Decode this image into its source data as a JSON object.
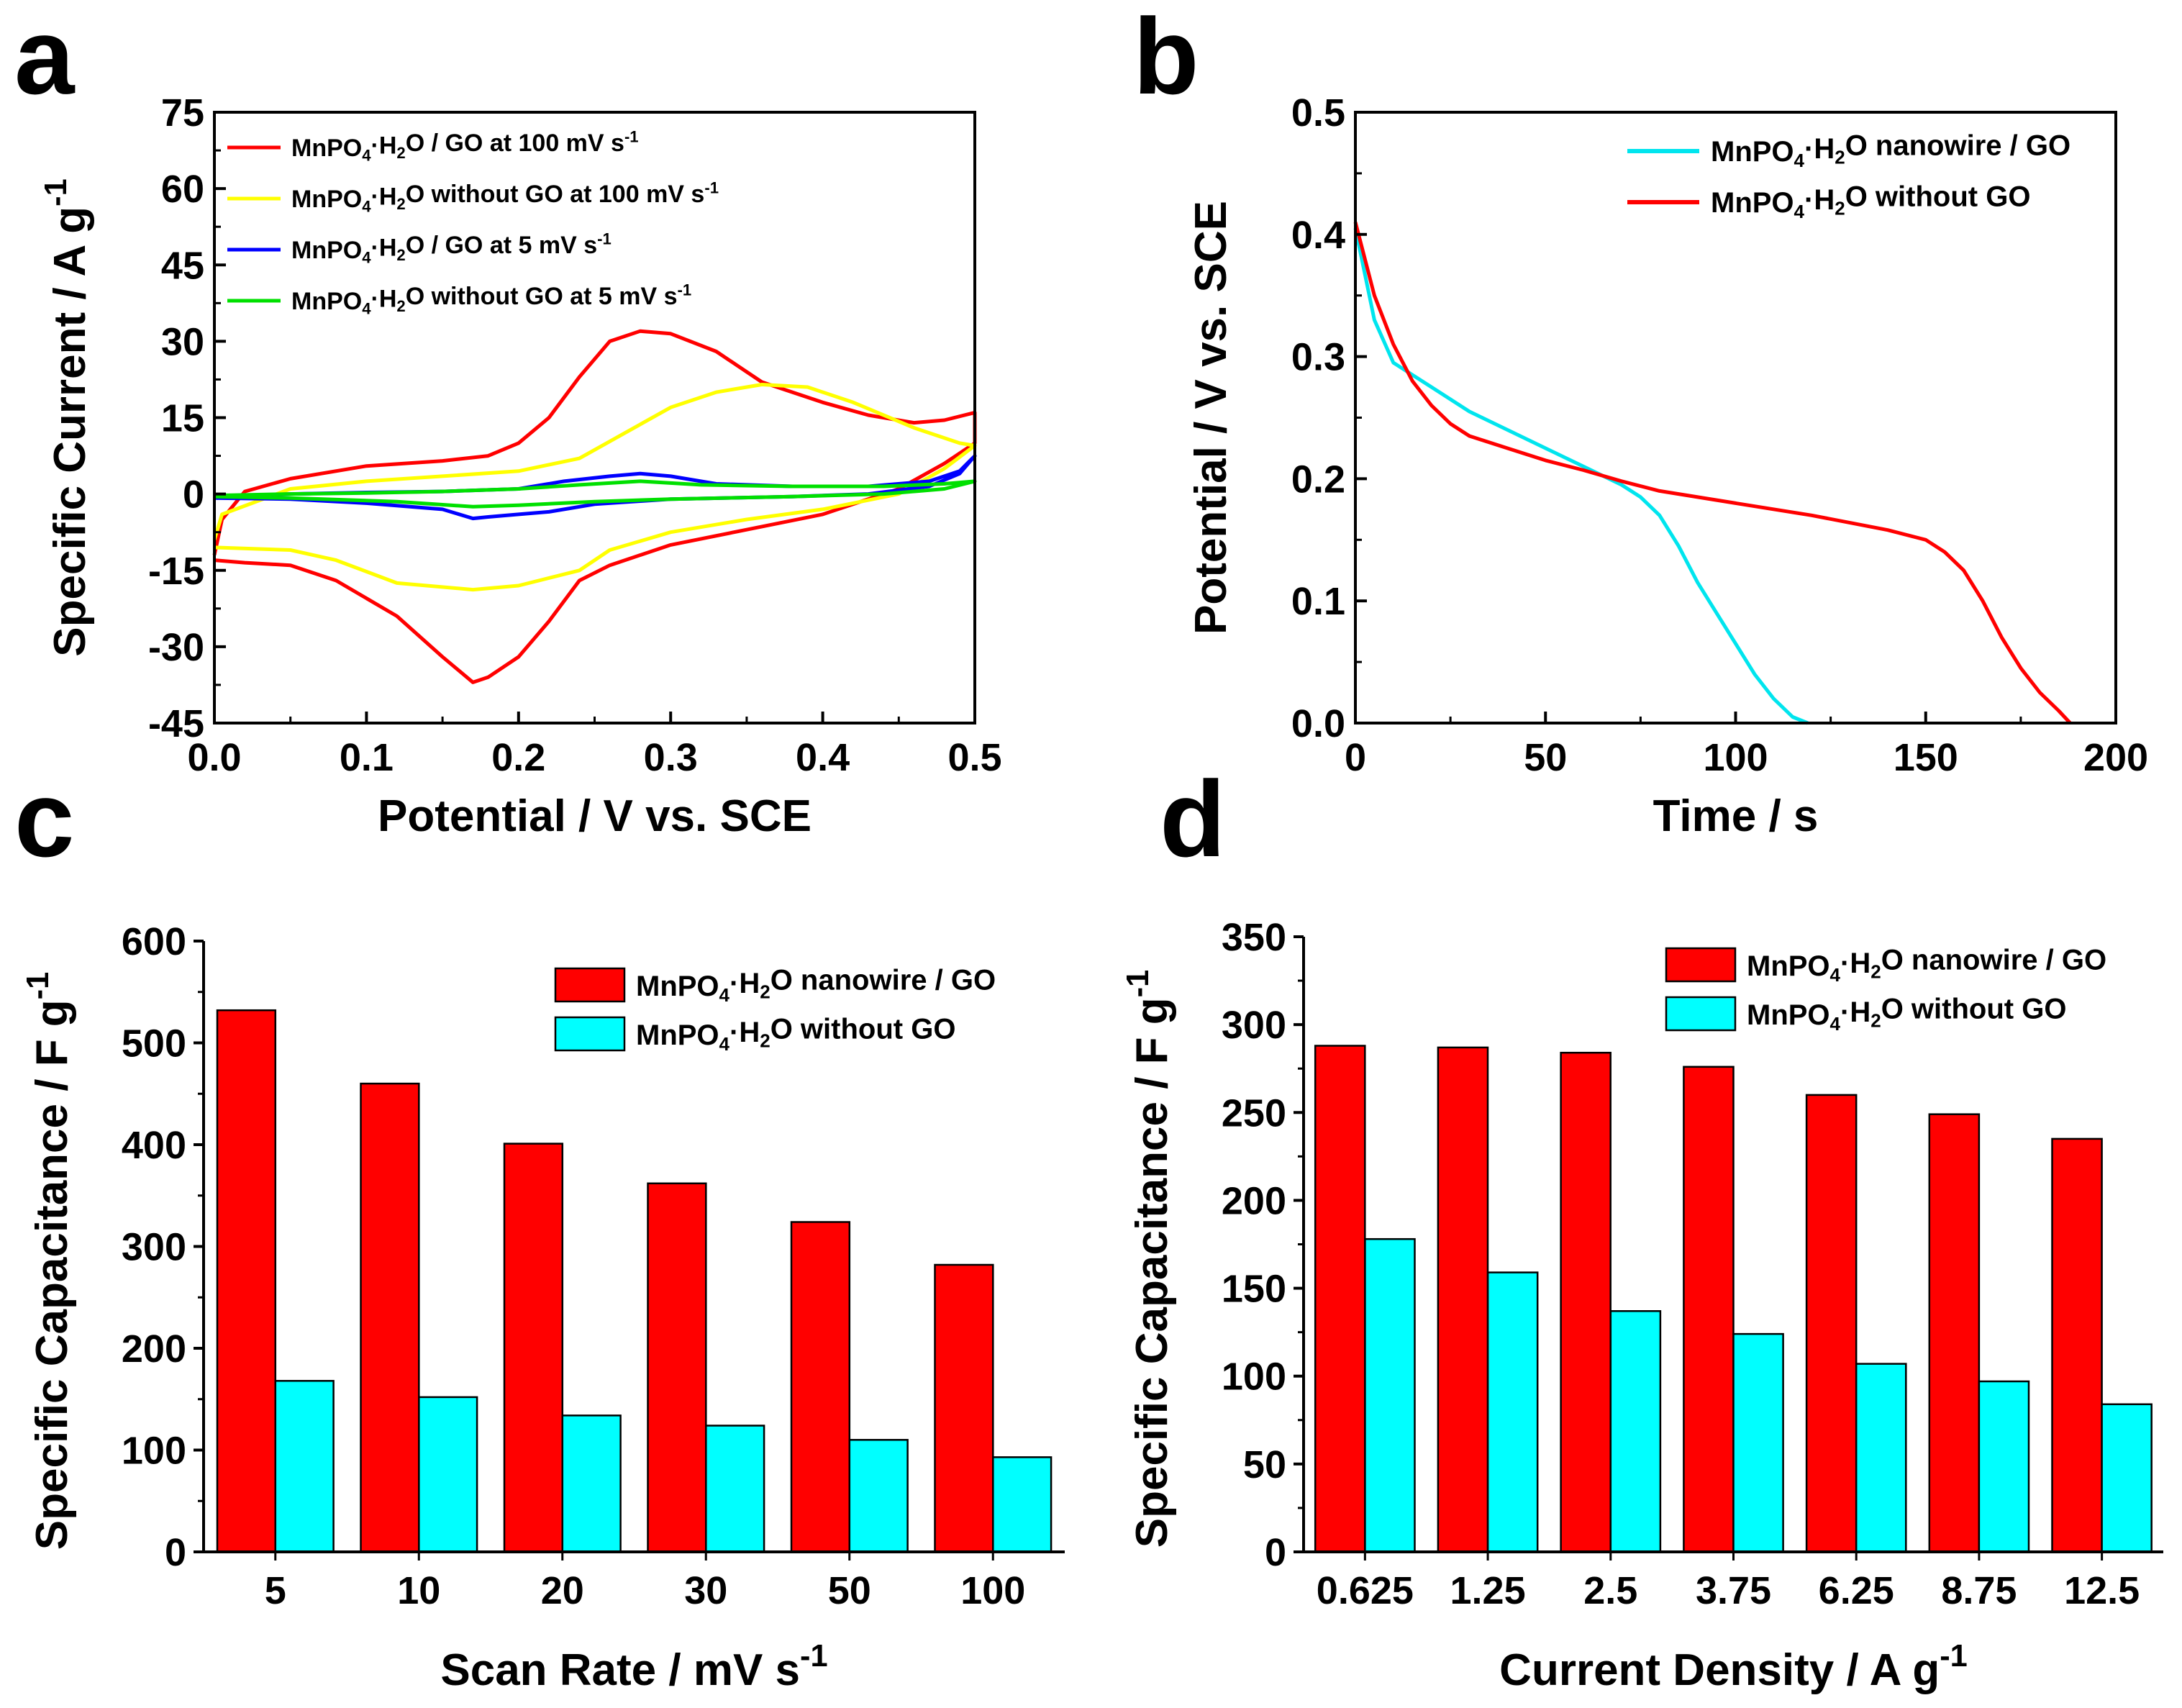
{
  "chart_data": [
    {
      "id": "a",
      "type": "line",
      "panel_label": "a",
      "xlabel": "Potential / V vs. SCE",
      "ylabel": "Specific Current / A g",
      "ylabel_sup": "-1",
      "xlim": [
        0,
        0.5
      ],
      "ylim": [
        -45,
        75
      ],
      "xticks": [
        "0.0",
        "0.1",
        "0.2",
        "0.3",
        "0.4",
        "0.5"
      ],
      "yticks": [
        "75",
        "60",
        "45",
        "30",
        "15",
        "0",
        "-15",
        "-30",
        "-45"
      ],
      "legend_position": "top-left",
      "series": [
        {
          "name": "MnPO4·H2O / GO at 100 mV s-1",
          "label_parts": [
            "MnPO",
            "4",
            "·H",
            "2",
            "O / GO at 100 mV s",
            "-1"
          ],
          "color": "#ff0000",
          "points": [
            [
              0.0,
              -12
            ],
            [
              0.005,
              -5
            ],
            [
              0.02,
              0.5
            ],
            [
              0.05,
              3
            ],
            [
              0.1,
              5.5
            ],
            [
              0.15,
              6.5
            ],
            [
              0.18,
              7.5
            ],
            [
              0.2,
              10
            ],
            [
              0.22,
              15
            ],
            [
              0.24,
              23
            ],
            [
              0.26,
              30
            ],
            [
              0.28,
              32
            ],
            [
              0.3,
              31.5
            ],
            [
              0.33,
              28
            ],
            [
              0.36,
              22
            ],
            [
              0.4,
              18
            ],
            [
              0.43,
              15.5
            ],
            [
              0.46,
              14
            ],
            [
              0.48,
              14.5
            ],
            [
              0.5,
              16
            ],
            [
              0.5,
              10
            ],
            [
              0.48,
              6
            ],
            [
              0.45,
              1
            ],
            [
              0.4,
              -4
            ],
            [
              0.35,
              -7
            ],
            [
              0.3,
              -10
            ],
            [
              0.26,
              -14
            ],
            [
              0.24,
              -17
            ],
            [
              0.22,
              -25
            ],
            [
              0.2,
              -32
            ],
            [
              0.18,
              -36
            ],
            [
              0.17,
              -37
            ],
            [
              0.15,
              -32
            ],
            [
              0.12,
              -24
            ],
            [
              0.08,
              -17
            ],
            [
              0.05,
              -14
            ],
            [
              0.02,
              -13.5
            ],
            [
              0.0,
              -13
            ]
          ]
        },
        {
          "name": "MnPO4·H2O without GO at 100 mV s-1",
          "label_parts": [
            "MnPO",
            "4",
            "·H",
            "2",
            "O without GO at 100 mV s",
            "-1"
          ],
          "color": "#ffff00",
          "points": [
            [
              0.0,
              -9
            ],
            [
              0.005,
              -4
            ],
            [
              0.05,
              1
            ],
            [
              0.1,
              2.5
            ],
            [
              0.15,
              3.5
            ],
            [
              0.2,
              4.5
            ],
            [
              0.24,
              7
            ],
            [
              0.27,
              12
            ],
            [
              0.3,
              17
            ],
            [
              0.33,
              20
            ],
            [
              0.36,
              21.5
            ],
            [
              0.39,
              21
            ],
            [
              0.42,
              18
            ],
            [
              0.46,
              13
            ],
            [
              0.49,
              10
            ],
            [
              0.5,
              9.5
            ],
            [
              0.48,
              5
            ],
            [
              0.45,
              0
            ],
            [
              0.4,
              -3
            ],
            [
              0.35,
              -5
            ],
            [
              0.3,
              -7.5
            ],
            [
              0.26,
              -11
            ],
            [
              0.24,
              -15
            ],
            [
              0.2,
              -18
            ],
            [
              0.17,
              -18.8
            ],
            [
              0.12,
              -17.5
            ],
            [
              0.08,
              -13
            ],
            [
              0.05,
              -11
            ],
            [
              0.0,
              -10.5
            ]
          ]
        },
        {
          "name": "MnPO4·H2O / GO at 5 mV s-1",
          "label_parts": [
            "MnPO",
            "4",
            "·H",
            "2",
            "O / GO at 5 mV s",
            "-1"
          ],
          "color": "#0000ff",
          "points": [
            [
              0.0,
              -0.5
            ],
            [
              0.05,
              0
            ],
            [
              0.1,
              0.3
            ],
            [
              0.15,
              0.5
            ],
            [
              0.2,
              1
            ],
            [
              0.23,
              2.5
            ],
            [
              0.26,
              3.5
            ],
            [
              0.28,
              4
            ],
            [
              0.3,
              3.5
            ],
            [
              0.33,
              2
            ],
            [
              0.38,
              1.5
            ],
            [
              0.43,
              1.5
            ],
            [
              0.47,
              2.5
            ],
            [
              0.49,
              4.5
            ],
            [
              0.5,
              7.5
            ],
            [
              0.49,
              4
            ],
            [
              0.47,
              1.5
            ],
            [
              0.43,
              0
            ],
            [
              0.38,
              -0.5
            ],
            [
              0.3,
              -1
            ],
            [
              0.25,
              -2
            ],
            [
              0.22,
              -3.5
            ],
            [
              0.2,
              -4
            ],
            [
              0.18,
              -4.5
            ],
            [
              0.17,
              -4.8
            ],
            [
              0.15,
              -3
            ],
            [
              0.1,
              -1.8
            ],
            [
              0.05,
              -1
            ],
            [
              0.0,
              -0.8
            ]
          ]
        },
        {
          "name": "MnPO4·H2O without GO at 5 mV s-1",
          "label_parts": [
            "MnPO",
            "4",
            "·H",
            "2",
            "O without GO at 5 mV s",
            "-1"
          ],
          "color": "#00e000",
          "points": [
            [
              0.0,
              -0.3
            ],
            [
              0.05,
              0
            ],
            [
              0.1,
              0.2
            ],
            [
              0.15,
              0.5
            ],
            [
              0.2,
              1
            ],
            [
              0.24,
              1.8
            ],
            [
              0.28,
              2.5
            ],
            [
              0.32,
              1.8
            ],
            [
              0.38,
              1.5
            ],
            [
              0.44,
              1.5
            ],
            [
              0.48,
              2
            ],
            [
              0.5,
              2.5
            ],
            [
              0.48,
              1
            ],
            [
              0.44,
              0
            ],
            [
              0.38,
              -0.5
            ],
            [
              0.3,
              -1
            ],
            [
              0.25,
              -1.5
            ],
            [
              0.2,
              -2.2
            ],
            [
              0.17,
              -2.5
            ],
            [
              0.12,
              -1.5
            ],
            [
              0.05,
              -0.8
            ],
            [
              0.0,
              -0.5
            ]
          ]
        }
      ]
    },
    {
      "id": "b",
      "type": "line",
      "panel_label": "b",
      "xlabel": "Time / s",
      "ylabel": "Potential / V vs. SCE",
      "xlim": [
        0,
        200
      ],
      "ylim": [
        0,
        0.5
      ],
      "xticks": [
        "0",
        "50",
        "100",
        "150",
        "200"
      ],
      "yticks": [
        "0.5",
        "0.4",
        "0.3",
        "0.2",
        "0.1",
        "0.0"
      ],
      "legend_position": "top-right",
      "series": [
        {
          "name": "MnPO4·H2O nanowire / GO",
          "label_parts": [
            "MnPO",
            "4",
            "·H",
            "2",
            "O nanowire / GO",
            ""
          ],
          "color": "#00e5ee",
          "points": [
            [
              0,
              0.405
            ],
            [
              5,
              0.33
            ],
            [
              10,
              0.295
            ],
            [
              15,
              0.285
            ],
            [
              20,
              0.275
            ],
            [
              30,
              0.255
            ],
            [
              40,
              0.24
            ],
            [
              50,
              0.225
            ],
            [
              60,
              0.21
            ],
            [
              70,
              0.195
            ],
            [
              75,
              0.185
            ],
            [
              80,
              0.17
            ],
            [
              85,
              0.145
            ],
            [
              90,
              0.115
            ],
            [
              95,
              0.09
            ],
            [
              100,
              0.065
            ],
            [
              105,
              0.04
            ],
            [
              110,
              0.02
            ],
            [
              115,
              0.005
            ],
            [
              119,
              0.0
            ]
          ]
        },
        {
          "name": "MnPO4·H2O without GO",
          "label_parts": [
            "MnPO",
            "4",
            "·H",
            "2",
            "O without GO",
            ""
          ],
          "color": "#ff0000",
          "points": [
            [
              0,
              0.41
            ],
            [
              5,
              0.35
            ],
            [
              10,
              0.31
            ],
            [
              15,
              0.28
            ],
            [
              20,
              0.26
            ],
            [
              25,
              0.245
            ],
            [
              30,
              0.235
            ],
            [
              40,
              0.225
            ],
            [
              50,
              0.215
            ],
            [
              60,
              0.207
            ],
            [
              70,
              0.198
            ],
            [
              80,
              0.19
            ],
            [
              100,
              0.18
            ],
            [
              120,
              0.17
            ],
            [
              140,
              0.158
            ],
            [
              150,
              0.15
            ],
            [
              155,
              0.14
            ],
            [
              160,
              0.125
            ],
            [
              165,
              0.1
            ],
            [
              170,
              0.07
            ],
            [
              175,
              0.045
            ],
            [
              180,
              0.025
            ],
            [
              185,
              0.01
            ],
            [
              188,
              0.0
            ]
          ]
        }
      ]
    },
    {
      "id": "c",
      "type": "bar",
      "panel_label": "c",
      "xlabel": "Scan Rate / mV s",
      "xlabel_sup": "-1",
      "ylabel": "Specific Capacitance / F g",
      "ylabel_sup": "-1",
      "ylim": [
        0,
        600
      ],
      "yticks": [
        "600",
        "500",
        "400",
        "300",
        "200",
        "100",
        "0"
      ],
      "categories": [
        "5",
        "10",
        "20",
        "30",
        "50",
        "100"
      ],
      "legend_position": "top-right",
      "series": [
        {
          "name": "MnPO4·H2O nanowire / GO",
          "label_parts": [
            "MnPO",
            "4",
            "·H",
            "2",
            "O nanowire / GO",
            ""
          ],
          "color": "#ff0000",
          "values": [
            532,
            460,
            401,
            362,
            324,
            282
          ]
        },
        {
          "name": "MnPO4·H2O without GO",
          "label_parts": [
            "MnPO",
            "4",
            "·H",
            "2",
            "O without GO",
            ""
          ],
          "color": "#00ffff",
          "values": [
            168,
            152,
            134,
            124,
            110,
            93
          ]
        }
      ]
    },
    {
      "id": "d",
      "type": "bar",
      "panel_label": "d",
      "xlabel": "Current Density / A g",
      "xlabel_sup": "-1",
      "ylabel": "Specific Capacitance / F g",
      "ylabel_sup": "-1",
      "ylim": [
        0,
        350
      ],
      "yticks": [
        "350",
        "300",
        "250",
        "200",
        "150",
        "100",
        "50",
        "0"
      ],
      "categories": [
        "0.625",
        "1.25",
        "2.5",
        "3.75",
        "6.25",
        "8.75",
        "12.5"
      ],
      "legend_position": "top-right",
      "series": [
        {
          "name": "MnPO4·H2O nanowire / GO",
          "label_parts": [
            "MnPO",
            "4",
            "·H",
            "2",
            "O nanowire / GO",
            ""
          ],
          "color": "#ff0000",
          "values": [
            288,
            287,
            284,
            276,
            260,
            249,
            235
          ]
        },
        {
          "name": "MnPO4·H2O without GO",
          "label_parts": [
            "MnPO",
            "4",
            "·H",
            "2",
            "O without GO",
            ""
          ],
          "color": "#00ffff",
          "values": [
            178,
            159,
            137,
            124,
            107,
            97,
            84
          ]
        }
      ]
    }
  ]
}
